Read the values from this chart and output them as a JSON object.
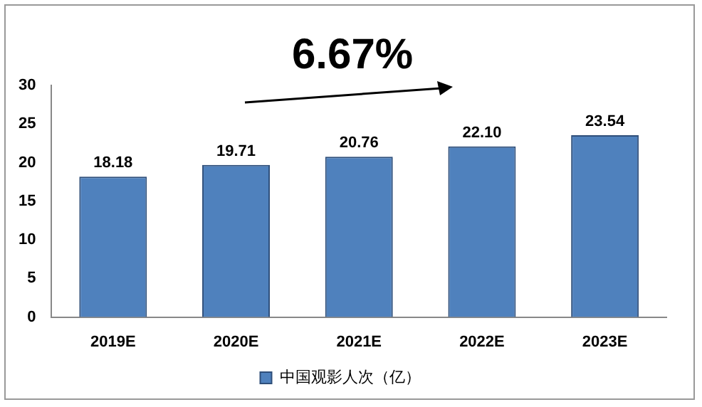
{
  "chart_data": {
    "type": "bar",
    "categories": [
      "2019E",
      "2020E",
      "2021E",
      "2022E",
      "2023E"
    ],
    "series": [
      {
        "name": "中国观影人次（亿）",
        "color": "#4f81bd",
        "values": [
          18.18,
          19.71,
          20.76,
          22.1,
          23.54
        ],
        "value_labels": [
          "18.18",
          "19.71",
          "20.76",
          "22.10",
          "23.54"
        ]
      }
    ],
    "ylim": [
      0,
      30
    ],
    "yticks": [
      0,
      5,
      10,
      15,
      20,
      25,
      30
    ],
    "grid": false,
    "legend": "bottom",
    "annotations": [
      "6.67%"
    ]
  }
}
